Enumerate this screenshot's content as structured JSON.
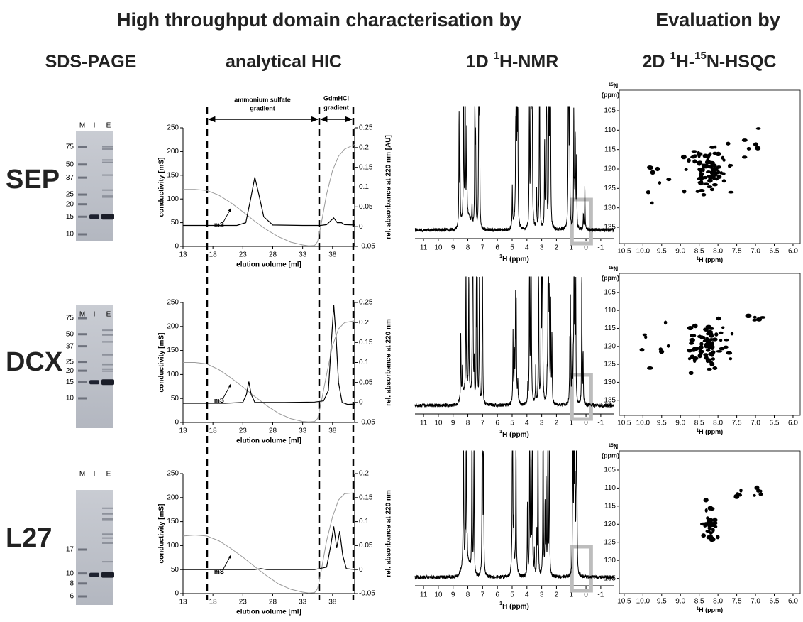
{
  "header": {
    "title": "High throughput domain characterisation by",
    "evaluation": "Evaluation by",
    "columns": [
      [
        {
          "text": "SDS-PAGE"
        }
      ],
      [
        {
          "text": "analytical HIC"
        }
      ],
      [
        {
          "text": "1D "
        },
        {
          "text": "1",
          "sup": true
        },
        {
          "text": "H-NMR"
        }
      ],
      [
        {
          "text": "2D "
        },
        {
          "text": "1",
          "sup": true
        },
        {
          "text": "H-"
        },
        {
          "text": "15",
          "sup": true
        },
        {
          "text": "N-HSQC"
        }
      ]
    ]
  },
  "gradients": {
    "ammonium": [
      "ammonium sulfate",
      "gradient"
    ],
    "gdm": [
      "GdmHCl",
      "gradient"
    ]
  },
  "rows": [
    {
      "label": "SEP",
      "gel": {
        "lanes": [
          "M",
          "I",
          "E"
        ],
        "markers": [
          75,
          50,
          37,
          25,
          20,
          15,
          10
        ]
      },
      "hic": {
        "type": "line",
        "xlabel": "elution volume [ml]",
        "ylabel": "conductivity [mS]",
        "y2label": "rel. absorbance at 220 nm [AU]",
        "annotation": "mS",
        "xlim": [
          13,
          41.7
        ],
        "xticks": [
          13,
          18,
          23,
          28,
          33,
          38
        ],
        "ylim": [
          0,
          250
        ],
        "yticks": [
          0,
          50,
          100,
          150,
          200,
          250
        ],
        "y2lim": [
          -0.05,
          0.25
        ],
        "y2ticks": [
          -0.05,
          0,
          0.05,
          0.1,
          0.15,
          0.2,
          0.25
        ],
        "series": [
          {
            "color": "#999999",
            "x": [
              13,
              15,
              17,
              19,
              21,
              23,
              25,
              27,
              29,
              31,
              33,
              34,
              35,
              35.5,
              36,
              37,
              38,
              39,
              40,
              41.7
            ],
            "values": [
              120,
              120,
              118,
              108,
              92,
              73,
              53,
              35,
              20,
              9,
              3,
              1,
              2,
              10,
              40,
              110,
              160,
              190,
              205,
              215
            ]
          },
          {
            "color": "#000000",
            "axis": "y2",
            "x": [
              13,
              17,
              22,
              23.5,
              24.3,
              25,
              25.7,
              26.5,
              28,
              33,
              36,
              37,
              37.7,
              38.2,
              38.8,
              39.5,
              40,
              41.7
            ],
            "values": [
              0.003,
              0.003,
              0.003,
              0.01,
              0.07,
              0.125,
              0.08,
              0.025,
              0.004,
              0.003,
              0.003,
              0.005,
              0.015,
              0.022,
              0.01,
              0.01,
              0.005,
              0.004
            ]
          }
        ]
      },
      "nmr": {
        "xlim": [
          11.58,
          -1.87
        ],
        "xticks": [
          11,
          10,
          9,
          8,
          7,
          6,
          5,
          4,
          3,
          2,
          1,
          0,
          -1
        ],
        "xlabel": [
          {
            "text": "1",
            "sup": true
          },
          {
            "text": "H (ppm)"
          }
        ]
      },
      "hsqc": {
        "xlim": [
          10.63,
          5.81
        ],
        "xticks": [
          10.5,
          {
            "value": 10,
            "label": "10.0"
          },
          9.5,
          {
            "value": 9,
            "label": "9.0"
          },
          8.5,
          {
            "value": 8,
            "label": "8.0"
          },
          7.5,
          {
            "value": 7,
            "label": "7.0"
          },
          6.5,
          {
            "value": 6,
            "label": "6.0"
          }
        ],
        "ylim": [
          99.7,
          139.2
        ],
        "yticks": [
          105,
          110,
          115,
          120,
          125,
          130,
          135
        ],
        "xlabel": [
          {
            "text": "1",
            "sup": true
          },
          {
            "text": "H (ppm)"
          }
        ],
        "ylabel": [
          {
            "text": "15",
            "sup": true
          },
          {
            "text": "N"
          }
        ],
        "yunit": "(ppm)"
      }
    },
    {
      "label": "DCX",
      "gel": {
        "lanes": [
          "M",
          "I",
          "E"
        ],
        "markers": [
          75,
          50,
          37,
          25,
          20,
          15,
          10
        ]
      },
      "hic": {
        "type": "line",
        "xlabel": "elution volume [ml]",
        "ylabel": "conductivity [mS]",
        "y2label": "rel. absorbance at 220 nm",
        "annotation": "mS",
        "xlim": [
          13,
          41.7
        ],
        "xticks": [
          13,
          18,
          23,
          28,
          33,
          38
        ],
        "ylim": [
          0,
          250
        ],
        "yticks": [
          0,
          50,
          100,
          150,
          200,
          250
        ],
        "y2lim": [
          -0.05,
          0.25
        ],
        "y2ticks": [
          -0.05,
          0,
          0.05,
          0.1,
          0.15,
          0.2,
          0.25
        ],
        "series": [
          {
            "color": "#999999",
            "x": [
              13,
              15,
              17,
              19,
              21,
              23,
              25,
              27,
              29,
              31,
              33,
              34,
              35,
              35.5,
              36,
              37,
              38,
              39,
              40,
              41.7
            ],
            "values": [
              125,
              125,
              122,
              110,
              93,
              74,
              54,
              35,
              19,
              8,
              2,
              1,
              2,
              8,
              35,
              100,
              160,
              195,
              208,
              212
            ]
          },
          {
            "color": "#000000",
            "axis": "y2",
            "x": [
              13,
              20,
              23,
              23.6,
              24,
              24.4,
              25,
              30,
              35,
              36.5,
              37.3,
              37.8,
              38.2,
              38.6,
              39,
              39.6,
              40.5,
              41.7
            ],
            "values": [
              -0.002,
              -0.002,
              0,
              0.02,
              0.052,
              0.02,
              0,
              0,
              0.001,
              0.004,
              0.03,
              0.15,
              0.244,
              0.16,
              0.05,
              0,
              -0.005,
              -0.004
            ]
          }
        ]
      },
      "nmr": {
        "xlim": [
          11.58,
          -1.87
        ],
        "xticks": [
          11,
          10,
          9,
          8,
          7,
          6,
          5,
          4,
          3,
          2,
          1,
          0,
          -1
        ],
        "xlabel": [
          {
            "text": "1",
            "sup": true
          },
          {
            "text": "H (ppm)"
          }
        ]
      },
      "hsqc": {
        "xlim": [
          10.63,
          5.81
        ],
        "xticks": [
          10.5,
          {
            "value": 10,
            "label": "10.0"
          },
          9.5,
          {
            "value": 9,
            "label": "9.0"
          },
          8.5,
          {
            "value": 8,
            "label": "8.0"
          },
          7.5,
          {
            "value": 7,
            "label": "7.0"
          },
          6.5,
          {
            "value": 6,
            "label": "6.0"
          }
        ],
        "ylim": [
          99.7,
          139.2
        ],
        "yticks": [
          105,
          110,
          115,
          120,
          125,
          130,
          135
        ],
        "xlabel": [
          {
            "text": "1",
            "sup": true
          },
          {
            "text": "H (ppm)"
          }
        ],
        "ylabel": [
          {
            "text": "15",
            "sup": true
          },
          {
            "text": "N"
          }
        ],
        "yunit": "(ppm)"
      }
    },
    {
      "label": "L27",
      "gel": {
        "lanes": [
          "M",
          "I",
          "E"
        ],
        "markers": [
          17,
          10,
          8,
          6
        ]
      },
      "hic": {
        "type": "line",
        "xlabel": "elution volume [ml]",
        "ylabel": "conductivity [mS]",
        "y2label": "rel. absorbance at 220 nm",
        "annotation": "mS",
        "xlim": [
          13,
          41.7
        ],
        "xticks": [
          13,
          18,
          23,
          28,
          33,
          38
        ],
        "ylim": [
          0,
          250
        ],
        "yticks": [
          0,
          50,
          100,
          150,
          200,
          250
        ],
        "y2lim": [
          -0.05,
          0.2
        ],
        "y2ticks": [
          -0.05,
          0,
          0.05,
          0.1,
          0.15,
          0.2
        ],
        "series": [
          {
            "color": "#999999",
            "x": [
              13,
              15,
              17,
              19,
              21,
              23,
              25,
              27,
              29,
              31,
              33,
              34,
              35,
              35.5,
              36,
              37,
              38,
              39,
              40,
              41.7
            ],
            "values": [
              120,
              122,
              120,
              110,
              94,
              76,
              56,
              37,
              20,
              9,
              3,
              1,
              2,
              10,
              40,
              110,
              160,
              195,
              208,
              210
            ]
          },
          {
            "color": "#000000",
            "axis": "y2",
            "x": [
              13,
              20,
              25,
              26,
              27,
              30,
              35,
              37,
              37.7,
              38.2,
              38.7,
              39.2,
              39.7,
              40.3,
              41.7
            ],
            "values": [
              0,
              0,
              0,
              0.002,
              0,
              0,
              0,
              0.005,
              0.05,
              0.09,
              0.045,
              0.08,
              0.03,
              0.002,
              0
            ]
          }
        ]
      },
      "nmr": {
        "xlim": [
          11.58,
          -1.87
        ],
        "xticks": [
          11,
          10,
          9,
          8,
          7,
          6,
          5,
          4,
          3,
          2,
          1,
          0,
          -1
        ],
        "xlabel": [
          {
            "text": "1",
            "sup": true
          },
          {
            "text": "H (ppm)"
          }
        ]
      },
      "hsqc": {
        "xlim": [
          10.63,
          5.81
        ],
        "xticks": [
          10.5,
          {
            "value": 10,
            "label": "10.0"
          },
          9.5,
          {
            "value": 9,
            "label": "9.0"
          },
          8.5,
          {
            "value": 8,
            "label": "8.0"
          },
          7.5,
          {
            "value": 7,
            "label": "7.0"
          },
          6.5,
          {
            "value": 6,
            "label": "6.0"
          }
        ],
        "ylim": [
          99.7,
          139.2
        ],
        "yticks": [
          105,
          110,
          115,
          120,
          125,
          130,
          135
        ],
        "xlabel": [
          {
            "text": "1",
            "sup": true
          },
          {
            "text": "H (ppm)"
          }
        ],
        "ylabel": [
          {
            "text": "15",
            "sup": true
          },
          {
            "text": "N"
          }
        ],
        "yunit": "(ppm)"
      }
    }
  ]
}
